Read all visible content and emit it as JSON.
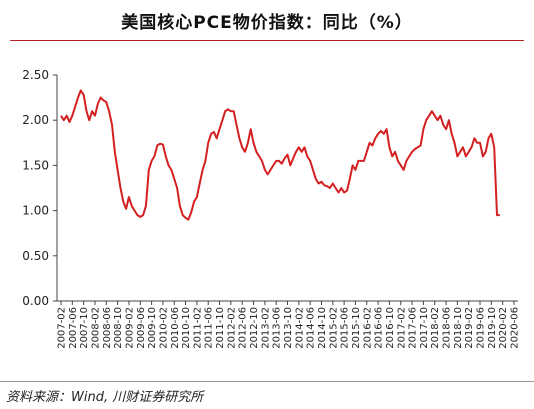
{
  "title": "美国核心PCE物价指数：同比（%）",
  "source": "资料来源：Wind, 川财证券研究所",
  "chart_data": {
    "type": "line",
    "title": "美国核心PCE物价指数：同比（%）",
    "xlabel": "",
    "ylabel": "",
    "ylim": [
      0,
      2.5
    ],
    "yticks": [
      "0.00",
      "0.50",
      "1.00",
      "1.50",
      "2.00",
      "2.50"
    ],
    "grid": false,
    "legend": "none",
    "line_color": "#d42020",
    "xticks": [
      "2007-02",
      "2007-06",
      "2007-10",
      "2008-02",
      "2008-06",
      "2008-10",
      "2009-02",
      "2009-06",
      "2009-10",
      "2010-02",
      "2010-06",
      "2010-10",
      "2011-02",
      "2011-06",
      "2011-10",
      "2012-02",
      "2012-06",
      "2012-10",
      "2013-02",
      "2013-06",
      "2013-10",
      "2014-02",
      "2014-06",
      "2014-10",
      "2015-02",
      "2015-06",
      "2015-10",
      "2016-02",
      "2016-06",
      "2016-10",
      "2017-02",
      "2017-06",
      "2017-10",
      "2018-02",
      "2018-06",
      "2018-10",
      "2019-02",
      "2019-06",
      "2019-10",
      "2020-02",
      "2020-06"
    ],
    "series": [
      {
        "start": "2007-02",
        "frequency": "monthly",
        "values": [
          2.05,
          2.0,
          2.05,
          1.98,
          2.05,
          2.15,
          2.25,
          2.33,
          2.28,
          2.1,
          2.0,
          2.1,
          2.05,
          2.18,
          2.25,
          2.22,
          2.2,
          2.1,
          1.95,
          1.65,
          1.45,
          1.25,
          1.1,
          1.02,
          1.15,
          1.05,
          1.0,
          0.95,
          0.93,
          0.95,
          1.05,
          1.45,
          1.55,
          1.6,
          1.72,
          1.74,
          1.73,
          1.6,
          1.5,
          1.45,
          1.35,
          1.25,
          1.05,
          0.95,
          0.92,
          0.9,
          0.98,
          1.1,
          1.15,
          1.3,
          1.45,
          1.55,
          1.75,
          1.85,
          1.87,
          1.8,
          1.9,
          2.0,
          2.1,
          2.12,
          2.1,
          2.1,
          1.95,
          1.8,
          1.7,
          1.65,
          1.75,
          1.9,
          1.75,
          1.65,
          1.6,
          1.55,
          1.45,
          1.4,
          1.45,
          1.5,
          1.55,
          1.55,
          1.52,
          1.58,
          1.62,
          1.5,
          1.58,
          1.65,
          1.7,
          1.65,
          1.7,
          1.6,
          1.55,
          1.45,
          1.35,
          1.3,
          1.32,
          1.28,
          1.27,
          1.25,
          1.3,
          1.25,
          1.2,
          1.25,
          1.2,
          1.22,
          1.35,
          1.5,
          1.45,
          1.55,
          1.55,
          1.55,
          1.65,
          1.75,
          1.72,
          1.8,
          1.85,
          1.88,
          1.85,
          1.9,
          1.7,
          1.6,
          1.65,
          1.55,
          1.5,
          1.45,
          1.55,
          1.6,
          1.65,
          1.68,
          1.7,
          1.72,
          1.9,
          2.0,
          2.05,
          2.1,
          2.05,
          2.0,
          2.05,
          1.95,
          1.9,
          2.0,
          1.85,
          1.75,
          1.6,
          1.65,
          1.7,
          1.6,
          1.65,
          1.7,
          1.8,
          1.75,
          1.75,
          1.6,
          1.65,
          1.8,
          1.85,
          1.7,
          0.95,
          0.95
        ]
      }
    ]
  }
}
